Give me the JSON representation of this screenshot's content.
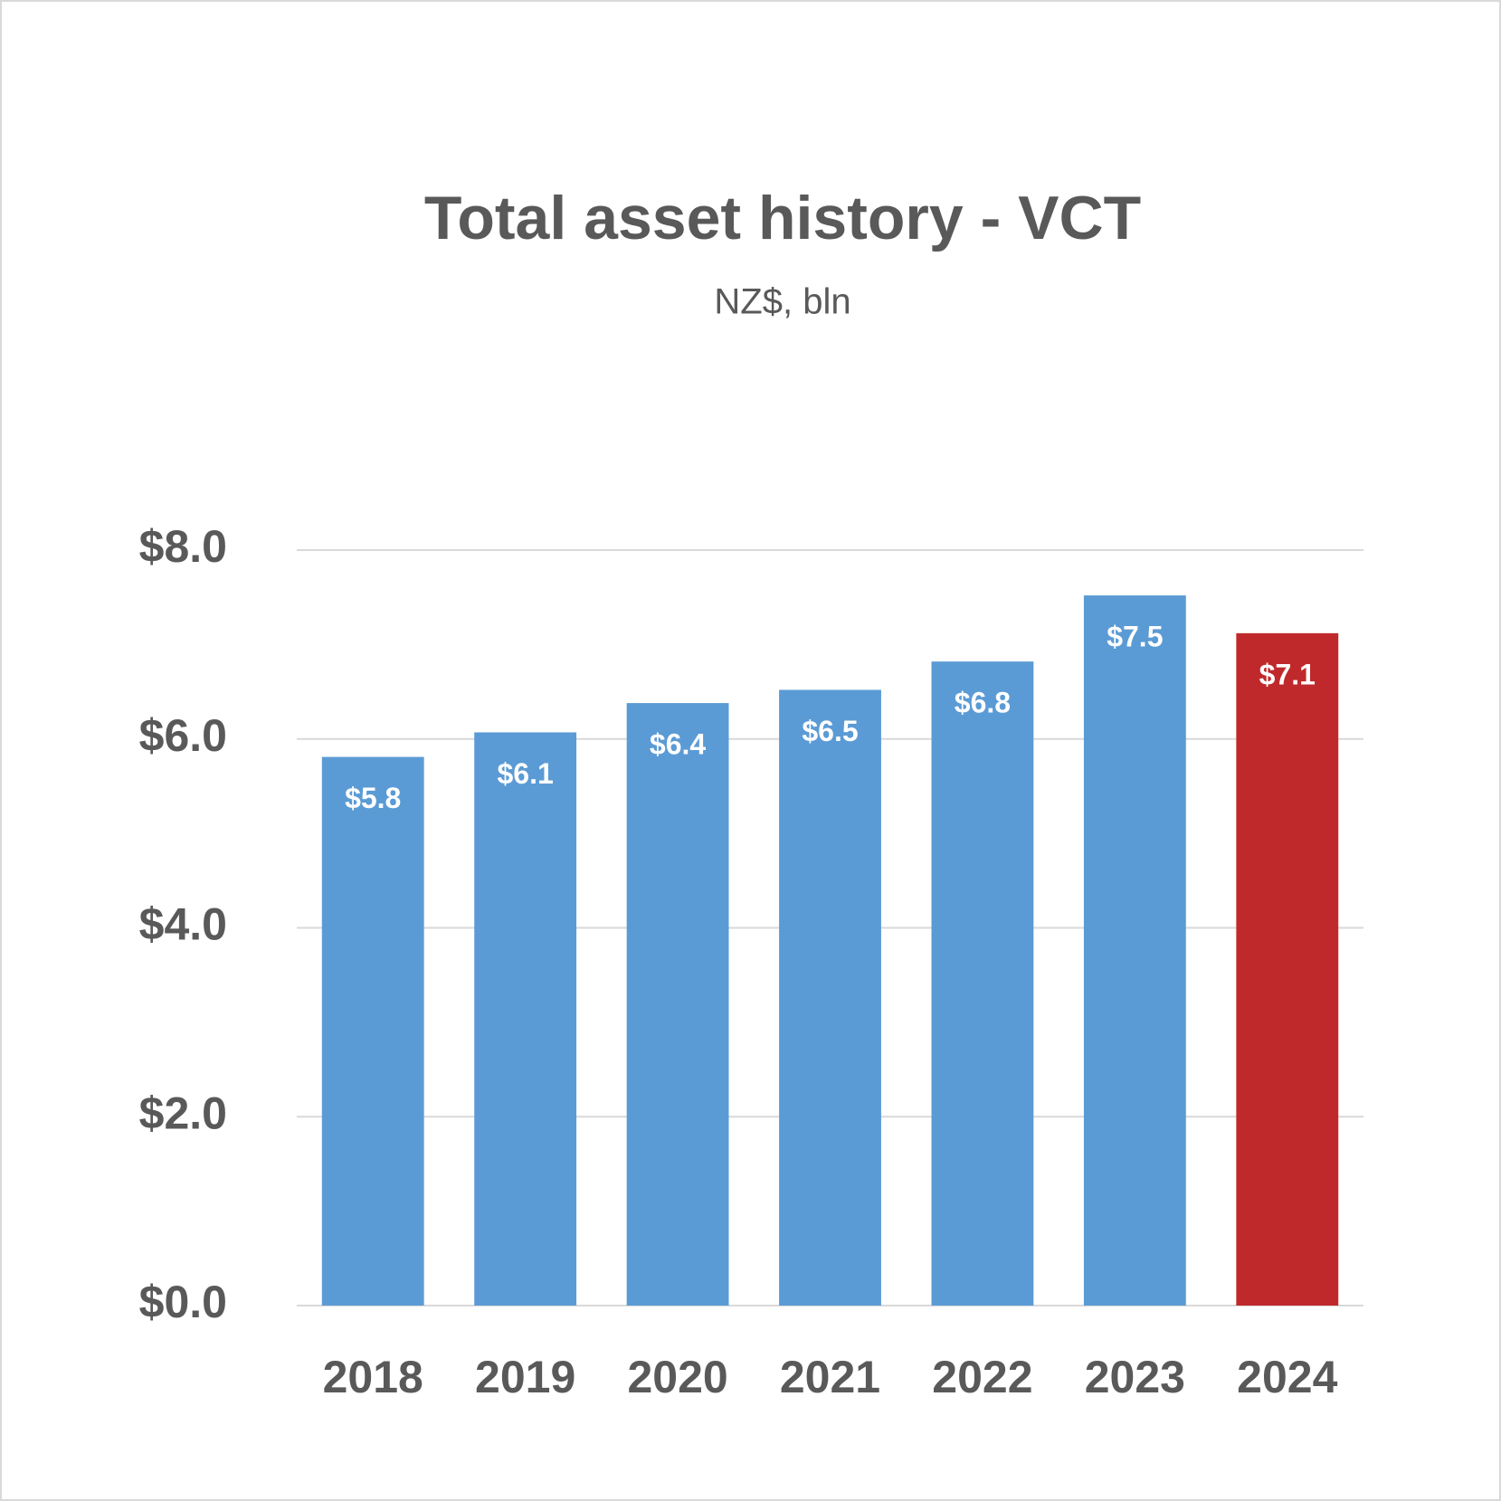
{
  "chart_data": {
    "type": "bar",
    "title": "Total asset history - VCT",
    "subtitle": "NZ$, bln",
    "categories": [
      "2018",
      "2019",
      "2020",
      "2021",
      "2022",
      "2023",
      "2024"
    ],
    "values": [
      5.81,
      6.07,
      6.38,
      6.52,
      6.82,
      7.52,
      7.12
    ],
    "value_labels": [
      "$5.8",
      "$6.1",
      "$6.4",
      "$6.5",
      "$6.8",
      "$7.5",
      "$7.1"
    ],
    "colors": [
      "#5b9bd5",
      "#5b9bd5",
      "#5b9bd5",
      "#5b9bd5",
      "#5b9bd5",
      "#5b9bd5",
      "#c0292b"
    ],
    "ylim": [
      0,
      8
    ],
    "yticks": [
      {
        "value": 0,
        "label": "$0.0"
      },
      {
        "value": 2,
        "label": "$2.0"
      },
      {
        "value": 4,
        "label": "$4.0"
      },
      {
        "value": 6,
        "label": "$6.0"
      },
      {
        "value": 8,
        "label": "$8.0"
      }
    ],
    "grid": true
  }
}
